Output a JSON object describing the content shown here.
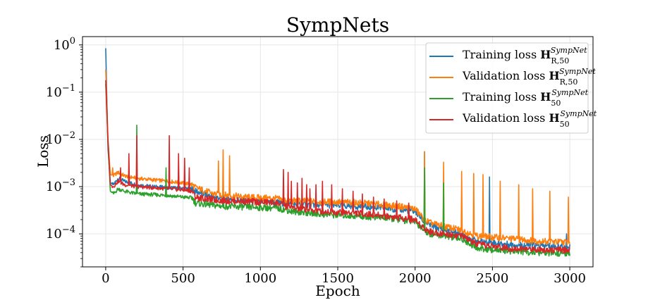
{
  "chart_data": {
    "type": "line",
    "title": "SympNets",
    "xlabel": "Epoch",
    "ylabel": "Loss",
    "xlim": [
      -150,
      3150
    ],
    "ylim": [
      2e-05,
      1.5
    ],
    "yscale": "log",
    "grid": true,
    "legend_position": "top-right",
    "x_ticks": [
      0,
      500,
      1000,
      1500,
      2000,
      2500,
      3000
    ],
    "y_ticks": [
      {
        "value": 0.0001,
        "base": "10",
        "exp": "−4"
      },
      {
        "value": 0.001,
        "base": "10",
        "exp": "−3"
      },
      {
        "value": 0.01,
        "base": "10",
        "exp": "−2"
      },
      {
        "value": 0.1,
        "base": "10",
        "exp": "−1"
      },
      {
        "value": 1,
        "base": "10",
        "exp": "0"
      }
    ],
    "series": [
      {
        "name": "Training loss H R,50 SympNet",
        "legend_prefix": "Training loss",
        "legend_symbol": "H",
        "legend_sub": "R,50",
        "legend_sup": "SympNet",
        "color": "#1f77b4",
        "x": [
          0,
          15,
          30,
          50,
          80,
          120,
          200,
          300,
          400,
          500,
          560,
          580,
          700,
          800,
          900,
          1000,
          1100,
          1150,
          1200,
          1300,
          1400,
          1500,
          1600,
          1700,
          1800,
          1900,
          2000,
          2060,
          2100,
          2200,
          2300,
          2400,
          2500,
          2600,
          2700,
          2800,
          2900,
          3000
        ],
        "y": [
          0.85,
          0.006,
          0.0012,
          0.0011,
          0.0015,
          0.0013,
          0.0011,
          0.001,
          0.00095,
          0.00092,
          0.0009,
          0.0008,
          0.0006,
          0.00055,
          0.0005,
          0.00048,
          0.00046,
          0.00045,
          0.00043,
          0.00042,
          0.00041,
          0.0004,
          0.00039,
          0.00037,
          0.00035,
          0.00033,
          0.0003,
          0.00018,
          0.00015,
          0.00012,
          0.0001,
          7e-05,
          6.5e-05,
          6e-05,
          5.8e-05,
          5.6e-05,
          5.4e-05,
          5.2e-05
        ],
        "spikes": [
          [
            2060,
            0.0055
          ],
          [
            2480,
            0.0016
          ],
          [
            2980,
            0.0001
          ]
        ]
      },
      {
        "name": "Validation loss H R,50 SympNet",
        "legend_prefix": "Validation loss",
        "legend_symbol": "H",
        "legend_sub": "R,50",
        "legend_sup": "SympNet",
        "color": "#ff7f0e",
        "x": [
          0,
          15,
          30,
          50,
          80,
          120,
          200,
          300,
          400,
          500,
          560,
          580,
          700,
          800,
          900,
          1000,
          1100,
          1150,
          1200,
          1300,
          1400,
          1500,
          1600,
          1700,
          1800,
          1900,
          2000,
          2060,
          2100,
          2200,
          2300,
          2400,
          2500,
          2600,
          2700,
          2800,
          2900,
          3000
        ],
        "y": [
          0.3,
          0.01,
          0.0018,
          0.0017,
          0.002,
          0.0017,
          0.0015,
          0.0014,
          0.0013,
          0.0012,
          0.0011,
          0.00095,
          0.0007,
          0.00065,
          0.0006,
          0.00058,
          0.00056,
          0.00052,
          0.0005,
          0.00049,
          0.00048,
          0.00047,
          0.00046,
          0.00044,
          0.00041,
          0.00038,
          0.00034,
          0.0002,
          0.00017,
          0.00014,
          0.00012,
          9e-05,
          8.5e-05,
          8e-05,
          7.5e-05,
          7e-05,
          6.8e-05,
          6.6e-05
        ],
        "spikes": [
          [
            45,
            0.0025
          ],
          [
            730,
            0.0035
          ],
          [
            760,
            0.006
          ],
          [
            800,
            0.0045
          ],
          [
            2060,
            0.0055
          ],
          [
            2185,
            0.0033
          ],
          [
            2300,
            0.0021
          ],
          [
            2380,
            0.0019
          ],
          [
            2440,
            0.0018
          ],
          [
            2550,
            0.0013
          ],
          [
            2670,
            0.0011
          ],
          [
            2760,
            0.0009
          ],
          [
            2870,
            0.0008
          ],
          [
            2990,
            0.0006
          ]
        ]
      },
      {
        "name": "Training loss H 50 SympNet",
        "legend_prefix": "Training loss",
        "legend_symbol": "H",
        "legend_sub": "50",
        "legend_sup": "SympNet",
        "color": "#2ca02c",
        "x": [
          0,
          15,
          30,
          50,
          80,
          120,
          200,
          300,
          400,
          500,
          560,
          580,
          700,
          800,
          900,
          1000,
          1100,
          1150,
          1200,
          1300,
          1400,
          1500,
          1600,
          1700,
          1800,
          1900,
          2000,
          2060,
          2100,
          2200,
          2300,
          2400,
          2500,
          2600,
          2700,
          2800,
          2900,
          3000
        ],
        "y": [
          0.15,
          0.008,
          0.0008,
          0.0007,
          0.0009,
          0.0008,
          0.0007,
          0.00068,
          0.00065,
          0.0006,
          0.00058,
          0.00045,
          0.0004,
          0.00038,
          0.00037,
          0.00036,
          0.00035,
          0.00033,
          0.0003,
          0.00028,
          0.00026,
          0.00025,
          0.00024,
          0.00023,
          0.00022,
          0.0002,
          0.00018,
          0.00012,
          0.0001,
          9e-05,
          8e-05,
          5e-05,
          4.6e-05,
          4.4e-05,
          4.2e-05,
          4e-05,
          3.9e-05,
          3.8e-05
        ],
        "spikes": [
          [
            200,
            0.02
          ],
          [
            390,
            0.0025
          ],
          [
            2060,
            0.0025
          ],
          [
            2185,
            0.0012
          ]
        ]
      },
      {
        "name": "Validation loss H 50 SympNet",
        "legend_prefix": "Validation loss",
        "legend_symbol": "H",
        "legend_sub": "50",
        "legend_sup": "SympNet",
        "color": "#d62728",
        "x": [
          0,
          15,
          30,
          50,
          80,
          120,
          200,
          300,
          400,
          500,
          560,
          580,
          700,
          800,
          900,
          1000,
          1100,
          1150,
          1200,
          1300,
          1400,
          1500,
          1600,
          1700,
          1800,
          1900,
          2000,
          2060,
          2100,
          2200,
          2300,
          2400,
          2500,
          2600,
          2700,
          2800,
          2900,
          3000
        ],
        "y": [
          0.18,
          0.009,
          0.0011,
          0.001,
          0.0013,
          0.0011,
          0.001,
          0.00095,
          0.0009,
          0.00085,
          0.0008,
          0.0006,
          0.00052,
          0.0005,
          0.00049,
          0.00047,
          0.00046,
          0.0004,
          0.00035,
          0.00033,
          0.0003,
          0.00029,
          0.00028,
          0.00026,
          0.00024,
          0.00022,
          0.0002,
          0.00013,
          0.00011,
          0.0001,
          9e-05,
          6e-05,
          5.5e-05,
          5e-05,
          4.8e-05,
          4.7e-05,
          4.6e-05,
          4.5e-05
        ],
        "spikes": [
          [
            95,
            0.0025
          ],
          [
            150,
            0.005
          ],
          [
            200,
            0.012
          ],
          [
            410,
            0.012
          ],
          [
            470,
            0.005
          ],
          [
            510,
            0.004
          ],
          [
            540,
            0.0025
          ],
          [
            1150,
            0.0023
          ],
          [
            1180,
            0.002
          ],
          [
            1200,
            0.0013
          ],
          [
            1240,
            0.0012
          ],
          [
            1270,
            0.0015
          ],
          [
            1300,
            0.0011
          ],
          [
            1320,
            0.0009
          ],
          [
            1360,
            0.0011
          ],
          [
            1400,
            0.0013
          ],
          [
            1460,
            0.0011
          ],
          [
            1530,
            0.0009
          ],
          [
            1600,
            0.0008
          ],
          [
            1660,
            0.0007
          ],
          [
            1730,
            0.0006
          ],
          [
            1800,
            0.00055
          ],
          [
            1880,
            0.0005
          ],
          [
            1960,
            0.00045
          ]
        ]
      }
    ]
  }
}
